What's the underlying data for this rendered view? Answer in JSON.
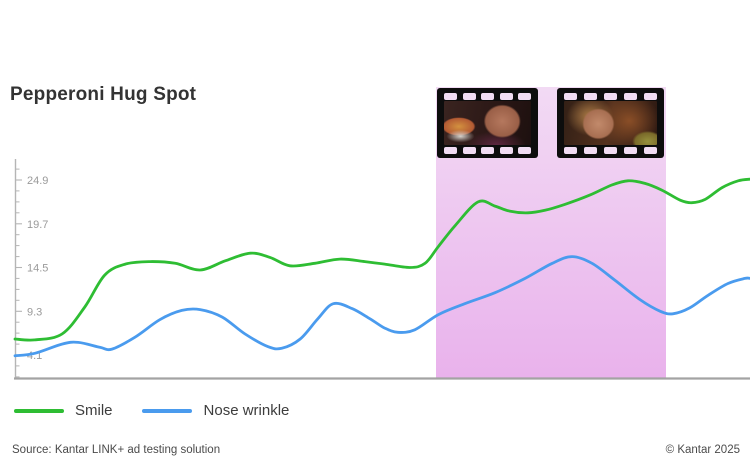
{
  "title": "Pepperoni Hug Spot",
  "legend": [
    {
      "label": "Smile",
      "color": "#2ebd33"
    },
    {
      "label": "Nose wrinkle",
      "color": "#4a9bee"
    }
  ],
  "footer": {
    "source": "Source: Kantar LINK+ ad testing solution",
    "copyright": "© Kantar 2025"
  },
  "film_strips": [
    {
      "name": "film-strip-frame-1",
      "depicts": "woman biting pizza slice"
    },
    {
      "name": "film-strip-frame-2",
      "depicts": "woman with wavy hair beside sandwich"
    }
  ],
  "chart_data": {
    "type": "line",
    "title": "Pepperoni Hug Spot",
    "xlabel": "",
    "ylabel": "",
    "x_axis_labels_visible": false,
    "grid": false,
    "legend_position": "bottom-left",
    "yticks": [
      24.9,
      19.7,
      14.5,
      9.3,
      4.1
    ],
    "ytick_labels": [
      "24.9",
      "19.7",
      "14.5",
      "9.3",
      "4.1"
    ],
    "minor_tick_step": 1.3,
    "ylim": [
      1.5,
      27.3
    ],
    "highlight_region": {
      "x_start_pct": 57.3,
      "x_end_pct": 88.6,
      "color_top": "#f2daf4",
      "color_bottom": "#e9b2ec"
    },
    "series": [
      {
        "name": "Smile",
        "color": "#2ebd33",
        "points": [
          [
            0,
            6.0
          ],
          [
            2.7,
            5.9
          ],
          [
            6.4,
            6.6
          ],
          [
            9.5,
            9.8
          ],
          [
            12.2,
            13.6
          ],
          [
            15,
            14.9
          ],
          [
            18.4,
            15.2
          ],
          [
            21.8,
            15.0
          ],
          [
            25.2,
            14.2
          ],
          [
            28.6,
            15.3
          ],
          [
            32,
            16.2
          ],
          [
            34.7,
            15.7
          ],
          [
            37.4,
            14.7
          ],
          [
            40.8,
            15.0
          ],
          [
            44.2,
            15.5
          ],
          [
            47.6,
            15.2
          ],
          [
            50.3,
            14.9
          ],
          [
            53.7,
            14.5
          ],
          [
            55.8,
            15.0
          ],
          [
            57.6,
            17.0
          ],
          [
            59.9,
            19.5
          ],
          [
            63,
            22.3
          ],
          [
            65.3,
            21.8
          ],
          [
            67.3,
            21.2
          ],
          [
            69.8,
            21.0
          ],
          [
            72.1,
            21.3
          ],
          [
            74.8,
            22.0
          ],
          [
            78.2,
            23.1
          ],
          [
            81.2,
            24.3
          ],
          [
            83.4,
            24.8
          ],
          [
            85.7,
            24.5
          ],
          [
            88,
            23.7
          ],
          [
            90.5,
            22.5
          ],
          [
            92.1,
            22.2
          ],
          [
            93.9,
            22.6
          ],
          [
            96.2,
            24.0
          ],
          [
            98.4,
            24.8
          ],
          [
            100,
            25.0
          ]
        ]
      },
      {
        "name": "Nose wrinkle",
        "color": "#4a9bee",
        "points": [
          [
            0,
            4.0
          ],
          [
            2.7,
            4.3
          ],
          [
            6.4,
            5.4
          ],
          [
            8.6,
            5.6
          ],
          [
            11.6,
            5.0
          ],
          [
            13.2,
            4.8
          ],
          [
            16.3,
            6.2
          ],
          [
            19.7,
            8.3
          ],
          [
            22.7,
            9.4
          ],
          [
            25.2,
            9.5
          ],
          [
            28.2,
            8.6
          ],
          [
            31.3,
            6.6
          ],
          [
            34.4,
            5.1
          ],
          [
            36.3,
            4.9
          ],
          [
            38.8,
            6.0
          ],
          [
            41.2,
            8.4
          ],
          [
            43.3,
            10.2
          ],
          [
            45.9,
            9.6
          ],
          [
            48.3,
            8.4
          ],
          [
            50.3,
            7.3
          ],
          [
            52.1,
            6.8
          ],
          [
            54.4,
            7.1
          ],
          [
            57.6,
            8.9
          ],
          [
            61.2,
            10.2
          ],
          [
            65.3,
            11.5
          ],
          [
            69.4,
            13.2
          ],
          [
            73.1,
            15.0
          ],
          [
            75.8,
            15.8
          ],
          [
            78.5,
            15.0
          ],
          [
            81.6,
            13.0
          ],
          [
            85,
            10.7
          ],
          [
            87.8,
            9.3
          ],
          [
            89.5,
            9.0
          ],
          [
            91.8,
            9.7
          ],
          [
            94.3,
            11.2
          ],
          [
            97,
            12.6
          ],
          [
            99.3,
            13.2
          ],
          [
            100,
            13.2
          ]
        ]
      }
    ]
  }
}
